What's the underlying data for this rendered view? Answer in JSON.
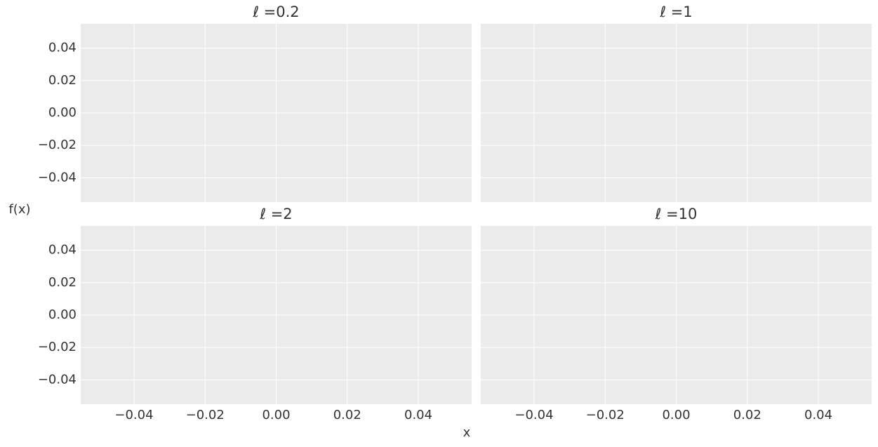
{
  "xlabel": "x",
  "ylabel": "f(x)",
  "chart_data": [
    {
      "type": "line",
      "title": "ℓ =0.2",
      "xlim": [
        -0.055,
        0.055
      ],
      "ylim": [
        -0.055,
        0.055
      ],
      "xticks": [
        {
          "value": -0.04,
          "label": "−0.04"
        },
        {
          "value": -0.02,
          "label": "−0.02"
        },
        {
          "value": 0,
          "label": "0.00"
        },
        0.02,
        0.04
      ],
      "yticks": [
        {
          "value": -0.04,
          "label": "−0.04"
        },
        {
          "value": -0.02,
          "label": "−0.02"
        },
        {
          "value": 0,
          "label": "0.00"
        },
        0.02,
        0.04
      ],
      "grid": true
    },
    {
      "type": "line",
      "title": "ℓ =1",
      "xlim": [
        -0.055,
        0.055
      ],
      "ylim": [
        -0.055,
        0.055
      ],
      "xticks": [
        {
          "value": -0.04,
          "label": "−0.04"
        },
        {
          "value": -0.02,
          "label": "−0.02"
        },
        {
          "value": 0,
          "label": "0.00"
        },
        0.02,
        0.04
      ],
      "yticks": [
        {
          "value": -0.04,
          "label": "−0.04"
        },
        {
          "value": -0.02,
          "label": "−0.02"
        },
        {
          "value": 0,
          "label": "0.00"
        },
        0.02,
        0.04
      ],
      "grid": true
    },
    {
      "type": "line",
      "title": "ℓ =2",
      "xlim": [
        -0.055,
        0.055
      ],
      "ylim": [
        -0.055,
        0.055
      ],
      "xticks": [
        {
          "value": -0.04,
          "label": "−0.04"
        },
        {
          "value": -0.02,
          "label": "−0.02"
        },
        {
          "value": 0,
          "label": "0.00"
        },
        0.02,
        0.04
      ],
      "yticks": [
        {
          "value": -0.04,
          "label": "−0.04"
        },
        {
          "value": -0.02,
          "label": "−0.02"
        },
        {
          "value": 0,
          "label": "0.00"
        },
        0.02,
        0.04
      ],
      "grid": true
    },
    {
      "type": "line",
      "title": "ℓ =10",
      "xlim": [
        -0.055,
        0.055
      ],
      "ylim": [
        -0.055,
        0.055
      ],
      "xticks": [
        {
          "value": -0.04,
          "label": "−0.04"
        },
        {
          "value": -0.02,
          "label": "−0.02"
        },
        {
          "value": 0,
          "label": "0.00"
        },
        0.02,
        0.04
      ],
      "yticks": [
        {
          "value": -0.04,
          "label": "−0.04"
        },
        {
          "value": -0.02,
          "label": "−0.02"
        },
        {
          "value": 0,
          "label": "0.00"
        },
        0.02,
        0.04
      ],
      "grid": true
    }
  ]
}
